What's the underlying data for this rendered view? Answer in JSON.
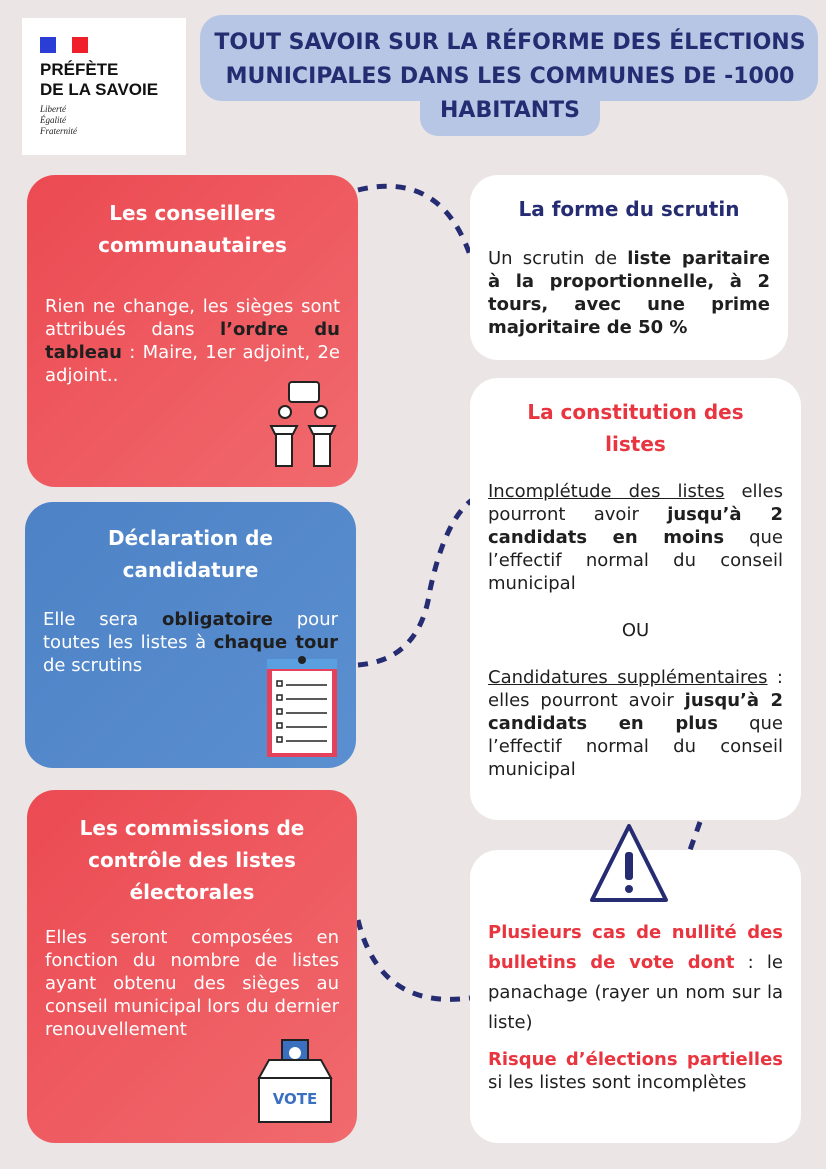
{
  "logo": {
    "name_line1": "PRÉFÈTE",
    "name_line2": "DE LA SAVOIE",
    "motto": [
      "Liberté",
      "Égalité",
      "Fraternité"
    ]
  },
  "title": "TOUT SAVOIR SUR LA RÉFORME DES ÉLECTIONS MUNICIPALES DANS LES COMMUNES DE -1000 HABITANTS",
  "conseillers": {
    "title": "Les conseillers communautaires",
    "t1": "Rien ne change, les sièges sont attribués dans ",
    "b1": "l’ordre du tableau",
    "t2": " : Maire, 1er adjoint, 2e adjoint..",
    "icon": "podium-speakers-icon"
  },
  "scrutin": {
    "title": "La forme du scrutin",
    "t1": "Un scrutin de ",
    "b1": "liste paritaire à la proportionnelle, à 2 tours, avec une prime majoritaire de 50 %"
  },
  "declaration": {
    "title": "Déclaration de candidature",
    "t1": "Elle sera ",
    "b1": "obligatoire",
    "t2": " pour toutes les listes à ",
    "b2": "chaque tour",
    "t3": " de scrutins",
    "icon": "clipboard-checklist-icon"
  },
  "listes": {
    "title": "La constitution des listes",
    "u1": "Incomplétude des listes",
    "t1": " elles pourront avoir ",
    "b1": "jusqu’à 2 candidats en moins",
    "t2": " que l’effectif normal du conseil municipal",
    "or": "OU",
    "u2": "Candidatures supplémentaires",
    "t3": " : elles pourront avoir ",
    "b2": "jusqu’à 2 candidats en plus",
    "t4": " que l’effectif normal du conseil municipal"
  },
  "commissions": {
    "title": "Les commissions de contrôle des listes électorales",
    "t1": "Elles seront composées en fonction du nombre de listes ayant obtenu des sièges au conseil municipal  lors du dernier renouvellement",
    "icon": "ballot-box-icon",
    "vote_label": "VOTE"
  },
  "nullite": {
    "icon": "warning-icon",
    "r1": "Plusieurs cas de nullité des bulletins de vote dont",
    "t1": " : le panachage (rayer un nom sur la liste)",
    "r2": "Risque d’élections partielles",
    "t2": " si les listes sont incomplètes"
  },
  "colors": {
    "red": "#ec4a52",
    "blue": "#4d82c6",
    "navy": "#262c72",
    "title_bg": "#b7c6e4"
  }
}
